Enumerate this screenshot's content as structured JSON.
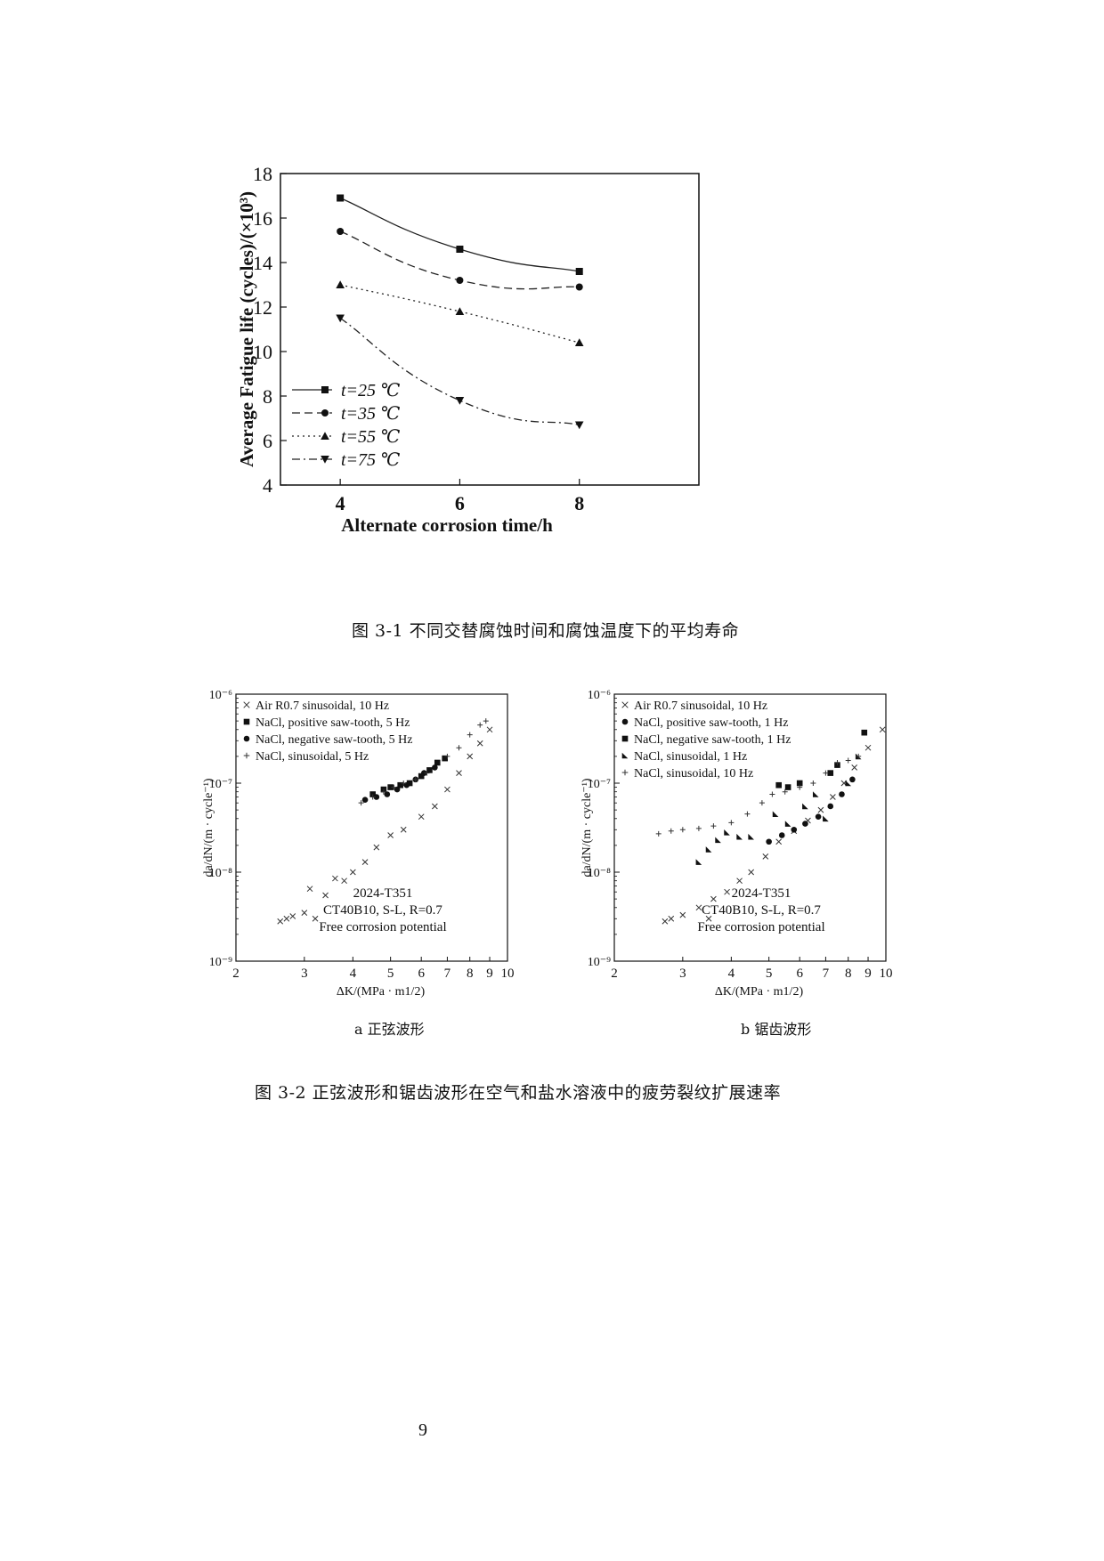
{
  "figure1": {
    "caption": "图 3-1   不同交替腐蚀时间和腐蚀温度下的平均寿命",
    "chart_data": {
      "type": "line",
      "xlabel": "Alternate corrosion time/h",
      "ylabel": "Average Fatigue life (cycles)/(×10³)",
      "x": [
        4,
        6,
        8
      ],
      "xlim": [
        3,
        10
      ],
      "ylim": [
        4,
        18
      ],
      "xticks": [
        4,
        6,
        8
      ],
      "yticks": [
        4,
        6,
        8,
        10,
        12,
        14,
        16,
        18
      ],
      "legend_position": "bottom-left",
      "series": [
        {
          "name": "t=25 ℃",
          "marker": "square",
          "dash": "solid",
          "values": [
            16.9,
            14.6,
            13.6
          ]
        },
        {
          "name": "t=35 ℃",
          "marker": "circle",
          "dash": "dashed",
          "values": [
            15.4,
            13.2,
            12.9
          ]
        },
        {
          "name": "t=55 ℃",
          "marker": "triangle-up",
          "dash": "dotted",
          "values": [
            13.0,
            11.8,
            10.4
          ]
        },
        {
          "name": "t=75 ℃",
          "marker": "triangle-down",
          "dash": "dash-dot",
          "values": [
            11.5,
            7.8,
            6.7
          ]
        }
      ]
    }
  },
  "figure2": {
    "caption": "图 3-2   正弦波形和锯齿波形在空气和盐水溶液中的疲劳裂纹扩展速率",
    "panels": [
      {
        "sub_caption": "a  正弦波形",
        "chart_data": {
          "type": "scatter",
          "xscale": "log",
          "yscale": "log",
          "xlim": [
            2,
            10
          ],
          "ylim": [
            1e-09,
            1e-06
          ],
          "xticks": [
            "2",
            "3",
            "4",
            "5",
            "6",
            "7",
            "8",
            "9",
            "10"
          ],
          "yticks": [
            "10⁻⁹",
            "10⁻⁸",
            "10⁻⁷",
            "10⁻⁶"
          ],
          "xlabel": "ΔK/(MPa · m1/2)",
          "ylabel": "da/dN/(m · cycle⁻¹)",
          "legend_position": "top-left",
          "annotation": [
            "2024-T351",
            "CT40B10, S-L, R=0.7",
            "Free corrosion potential"
          ],
          "series": [
            {
              "name": "Air R0.7 sinusoidal, 10 Hz",
              "marker": "x",
              "points": [
                [
                  2.6,
                  2.8e-09
                ],
                [
                  2.7,
                  3e-09
                ],
                [
                  2.8,
                  3.2e-09
                ],
                [
                  3.0,
                  3.5e-09
                ],
                [
                  3.1,
                  6.5e-09
                ],
                [
                  3.2,
                  3e-09
                ],
                [
                  3.4,
                  5.5e-09
                ],
                [
                  3.6,
                  8.5e-09
                ],
                [
                  3.8,
                  8e-09
                ],
                [
                  4.0,
                  1e-08
                ],
                [
                  4.3,
                  1.3e-08
                ],
                [
                  4.6,
                  1.9e-08
                ],
                [
                  5.0,
                  2.6e-08
                ],
                [
                  5.4,
                  3e-08
                ],
                [
                  6.0,
                  4.2e-08
                ],
                [
                  6.5,
                  5.5e-08
                ],
                [
                  7.0,
                  8.5e-08
                ],
                [
                  7.5,
                  1.3e-07
                ],
                [
                  8.0,
                  2e-07
                ],
                [
                  8.5,
                  2.8e-07
                ],
                [
                  9.0,
                  4e-07
                ]
              ]
            },
            {
              "name": "NaCl, positive saw-tooth, 5 Hz",
              "marker": "square",
              "points": [
                [
                  4.5,
                  7.5e-08
                ],
                [
                  4.8,
                  8.5e-08
                ],
                [
                  5.0,
                  9e-08
                ],
                [
                  5.3,
                  9.5e-08
                ],
                [
                  5.6,
                  1e-07
                ],
                [
                  6.0,
                  1.2e-07
                ],
                [
                  6.3,
                  1.4e-07
                ],
                [
                  6.6,
                  1.7e-07
                ],
                [
                  6.9,
                  1.9e-07
                ]
              ]
            },
            {
              "name": "NaCl, negative saw-tooth, 5 Hz",
              "marker": "circle",
              "points": [
                [
                  4.3,
                  6.5e-08
                ],
                [
                  4.6,
                  7e-08
                ],
                [
                  4.9,
                  7.5e-08
                ],
                [
                  5.2,
                  8.5e-08
                ],
                [
                  5.5,
                  9.5e-08
                ],
                [
                  5.8,
                  1.1e-07
                ],
                [
                  6.1,
                  1.3e-07
                ],
                [
                  6.5,
                  1.5e-07
                ]
              ]
            },
            {
              "name": "NaCl, sinusoidal, 5 Hz",
              "marker": "plus",
              "points": [
                [
                  4.2,
                  6e-08
                ],
                [
                  4.5,
                  7e-08
                ],
                [
                  4.8,
                  8e-08
                ],
                [
                  5.1,
                  9e-08
                ],
                [
                  5.4,
                  1e-07
                ],
                [
                  5.8,
                  1.1e-07
                ],
                [
                  6.2,
                  1.3e-07
                ],
                [
                  7.0,
                  2e-07
                ],
                [
                  7.5,
                  2.5e-07
                ],
                [
                  8.0,
                  3.5e-07
                ],
                [
                  8.5,
                  4.5e-07
                ],
                [
                  8.8,
                  5e-07
                ]
              ]
            }
          ]
        }
      },
      {
        "sub_caption": "b  锯齿波形",
        "chart_data": {
          "type": "scatter",
          "xscale": "log",
          "yscale": "log",
          "xlim": [
            2,
            10
          ],
          "ylim": [
            1e-09,
            1e-06
          ],
          "xticks": [
            "2",
            "3",
            "4",
            "5",
            "6",
            "7",
            "8",
            "9",
            "10"
          ],
          "yticks": [
            "10⁻⁹",
            "10⁻⁸",
            "10⁻⁷",
            "10⁻⁶"
          ],
          "xlabel": "ΔK/(MPa · m1/2)",
          "ylabel": "da/dN/(m · cycle⁻¹)",
          "legend_position": "top-left",
          "annotation": [
            "2024-T351",
            "CT40B10, S-L, R=0.7",
            "Free corrosion potential"
          ],
          "series": [
            {
              "name": "Air R0.7 sinusoidal, 10 Hz",
              "marker": "x",
              "points": [
                [
                  2.7,
                  2.8e-09
                ],
                [
                  2.8,
                  3e-09
                ],
                [
                  3.0,
                  3.3e-09
                ],
                [
                  3.3,
                  4e-09
                ],
                [
                  3.5,
                  3e-09
                ],
                [
                  3.6,
                  5e-09
                ],
                [
                  3.9,
                  6e-09
                ],
                [
                  4.2,
                  8e-09
                ],
                [
                  4.5,
                  1e-08
                ],
                [
                  4.9,
                  1.5e-08
                ],
                [
                  5.3,
                  2.2e-08
                ],
                [
                  5.8,
                  2.9e-08
                ],
                [
                  6.3,
                  3.8e-08
                ],
                [
                  6.8,
                  5e-08
                ],
                [
                  7.3,
                  7e-08
                ],
                [
                  7.8,
                  1e-07
                ],
                [
                  8.3,
                  1.5e-07
                ],
                [
                  9.0,
                  2.5e-07
                ],
                [
                  9.8,
                  4e-07
                ]
              ]
            },
            {
              "name": "NaCl, positive saw-tooth, 1 Hz",
              "marker": "circle",
              "points": [
                [
                  5.0,
                  2.2e-08
                ],
                [
                  5.4,
                  2.6e-08
                ],
                [
                  5.8,
                  3e-08
                ],
                [
                  6.2,
                  3.5e-08
                ],
                [
                  6.7,
                  4.2e-08
                ],
                [
                  7.2,
                  5.5e-08
                ],
                [
                  7.7,
                  7.5e-08
                ],
                [
                  8.2,
                  1.1e-07
                ]
              ]
            },
            {
              "name": "NaCl, negative saw-tooth, 1 Hz",
              "marker": "square",
              "points": [
                [
                  5.3,
                  9.5e-08
                ],
                [
                  5.6,
                  9e-08
                ],
                [
                  6.0,
                  1e-07
                ],
                [
                  7.2,
                  1.3e-07
                ],
                [
                  7.5,
                  1.6e-07
                ],
                [
                  8.8,
                  3.7e-07
                ]
              ]
            },
            {
              "name": "NaCl, sinusoidal, 1 Hz",
              "marker": "right-triangle",
              "points": [
                [
                  3.3,
                  1.3e-08
                ],
                [
                  3.5,
                  1.8e-08
                ],
                [
                  3.7,
                  2.3e-08
                ],
                [
                  3.9,
                  2.8e-08
                ],
                [
                  4.2,
                  2.5e-08
                ],
                [
                  4.5,
                  2.5e-08
                ],
                [
                  5.2,
                  4.5e-08
                ],
                [
                  5.6,
                  3.5e-08
                ],
                [
                  6.2,
                  5.5e-08
                ],
                [
                  6.6,
                  7.5e-08
                ],
                [
                  7.0,
                  4e-08
                ],
                [
                  8.0,
                  1e-07
                ],
                [
                  8.5,
                  2e-07
                ]
              ]
            },
            {
              "name": "NaCl, sinusoidal, 10 Hz",
              "marker": "plus",
              "points": [
                [
                  2.6,
                  2.7e-08
                ],
                [
                  2.8,
                  2.9e-08
                ],
                [
                  3.0,
                  3e-08
                ],
                [
                  3.3,
                  3.1e-08
                ],
                [
                  3.6,
                  3.3e-08
                ],
                [
                  4.0,
                  3.6e-08
                ],
                [
                  4.4,
                  4.5e-08
                ],
                [
                  4.8,
                  6e-08
                ],
                [
                  5.1,
                  7.5e-08
                ],
                [
                  5.5,
                  8e-08
                ],
                [
                  6.0,
                  9e-08
                ],
                [
                  6.5,
                  1e-07
                ],
                [
                  7.0,
                  1.3e-07
                ],
                [
                  7.5,
                  1.7e-07
                ],
                [
                  8.0,
                  1.8e-07
                ],
                [
                  8.5,
                  2e-07
                ]
              ]
            }
          ]
        }
      }
    ]
  },
  "page_number": "9"
}
